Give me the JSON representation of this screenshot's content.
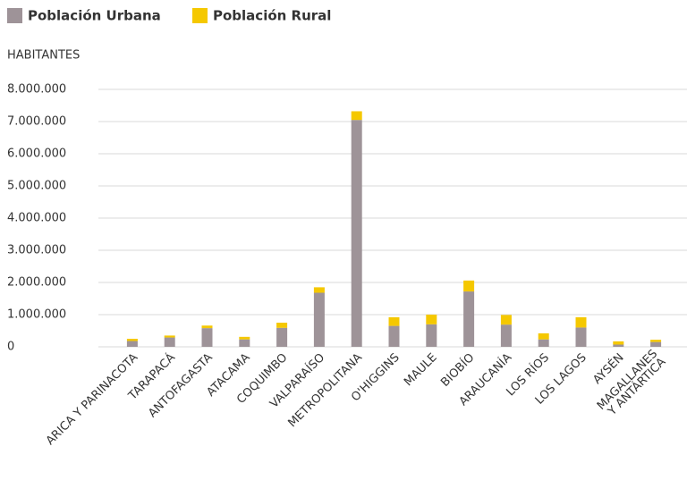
{
  "chart_data": {
    "type": "bar",
    "stacked": true,
    "y_label": "HABITANTES",
    "categories": [
      "ARICA Y PARINACOTA",
      "TARAPACÁ",
      "ANTOFAGASTA",
      "ATACAMA",
      "COQUIMBO",
      "VALPARAÍSO",
      "METROPOLITANA",
      "O'HIGGINS",
      "MAULE",
      "BIOBÍO",
      "ARAUCANÍA",
      "LOS RÍOS",
      "LOS LAGOS",
      "AYSÉN",
      "MAGALLANES\nY ANTÁRTICA"
    ],
    "series": [
      {
        "name": "Población Urbana",
        "color": "#9e9398",
        "values": [
          180000,
          290000,
          580000,
          230000,
          590000,
          1680000,
          7050000,
          650000,
          700000,
          1720000,
          690000,
          230000,
          600000,
          70000,
          150000
        ]
      },
      {
        "name": "Población Rural",
        "color": "#f5c800",
        "values": [
          70000,
          60000,
          80000,
          80000,
          160000,
          170000,
          270000,
          270000,
          300000,
          340000,
          300000,
          190000,
          320000,
          100000,
          70000
        ]
      }
    ],
    "ylim": [
      0,
      8000000
    ],
    "yticks": [
      0,
      {
        "value": 1000000,
        "label": "1.000.000"
      },
      {
        "value": 2000000,
        "label": "2.000.000"
      },
      {
        "value": 3000000,
        "label": "3.000.000"
      },
      {
        "value": 4000000,
        "label": "4.000.000"
      },
      {
        "value": 5000000,
        "label": "5.000.000"
      },
      {
        "value": 6000000,
        "label": "6.000.000"
      },
      {
        "value": 7000000,
        "label": "7.000.000"
      },
      {
        "value": 8000000,
        "label": "8.000.000"
      }
    ],
    "grid": true,
    "legend": "top-left"
  }
}
